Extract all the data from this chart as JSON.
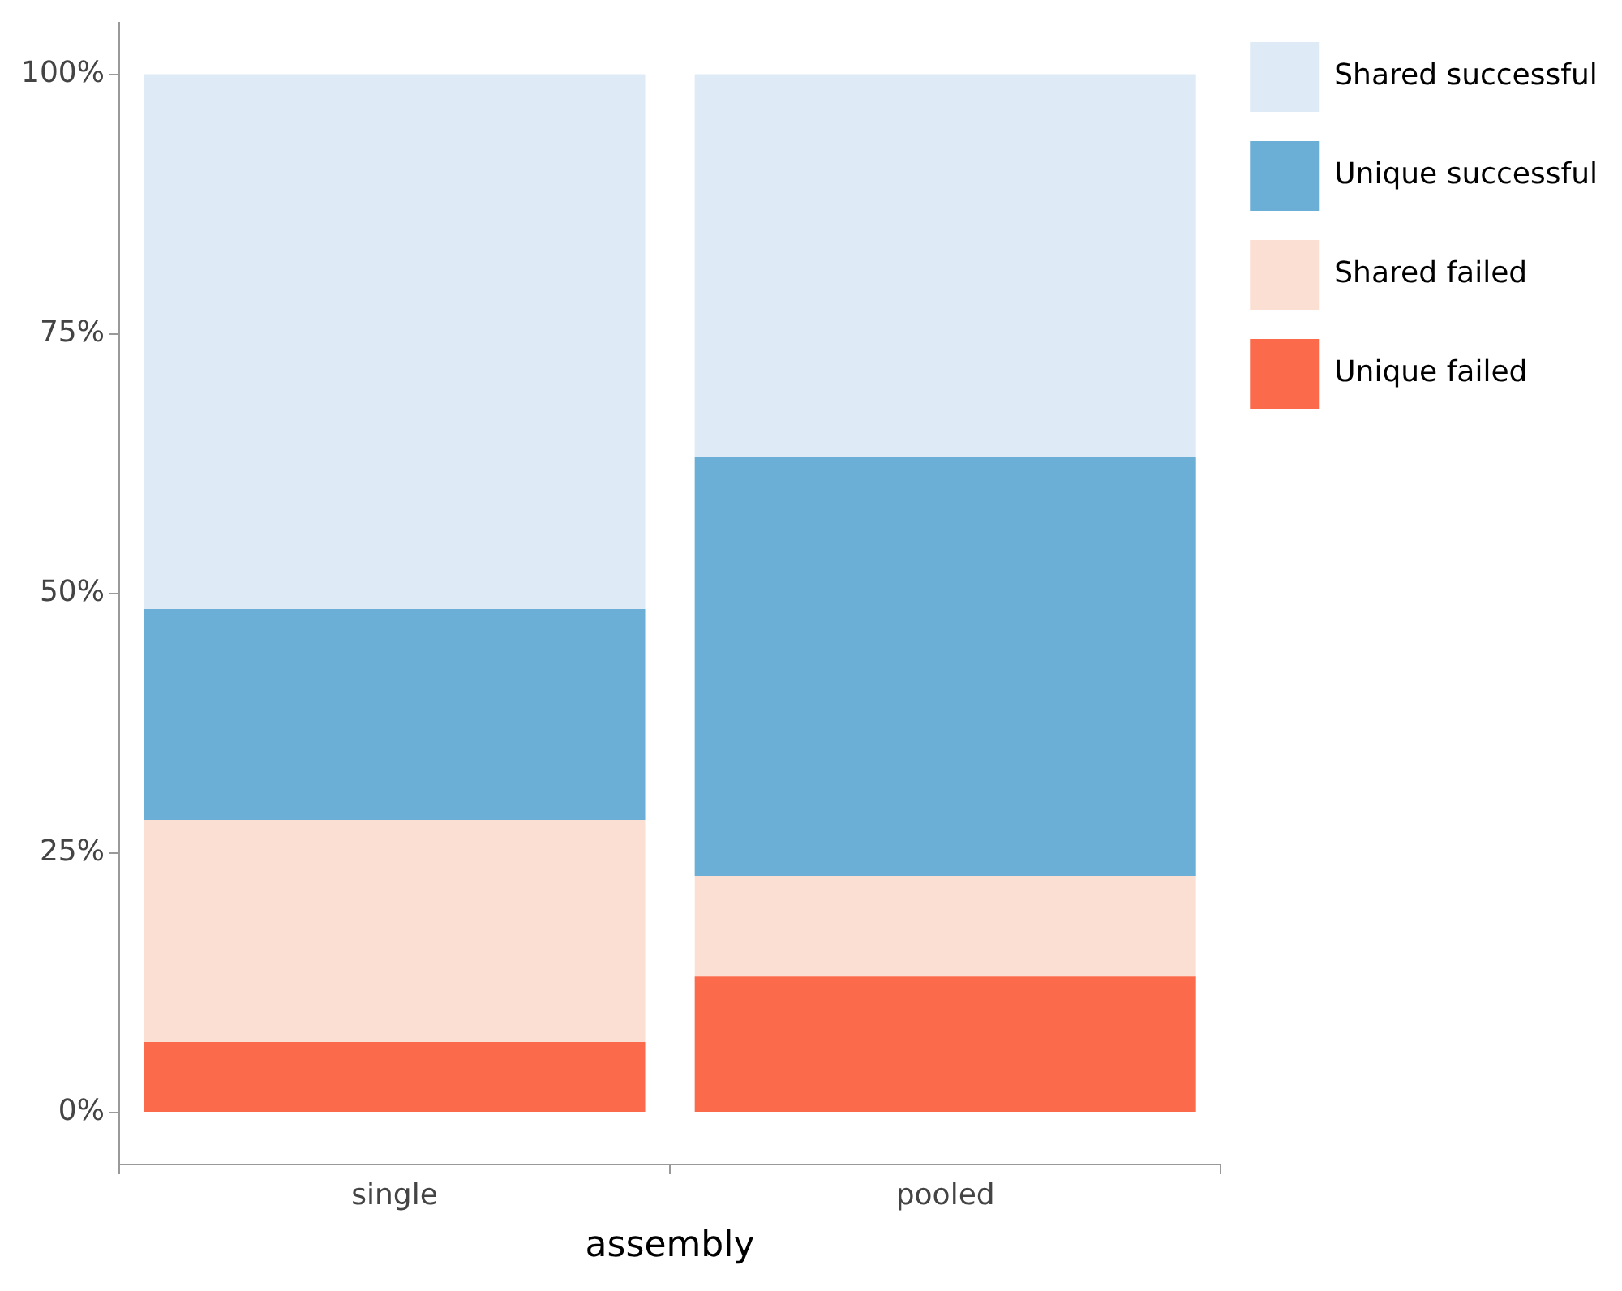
{
  "chart_data": {
    "type": "bar",
    "stacked": true,
    "xlabel": "assembly",
    "categories": [
      "single",
      "pooled"
    ],
    "series": [
      {
        "name": "Unique failed",
        "color": "#fb6a4a",
        "values": [
          6.8,
          13.1
        ]
      },
      {
        "name": "Shared failed",
        "color": "#fcdfd3",
        "values": [
          21.4,
          9.7
        ]
      },
      {
        "name": "Unique successful",
        "color": "#6baed6",
        "values": [
          20.3,
          40.3
        ]
      },
      {
        "name": "Shared successful",
        "color": "#deebf7",
        "values": [
          51.5,
          36.9
        ]
      }
    ],
    "ylim": [
      -5,
      105
    ],
    "yticks": [
      {
        "value": 0,
        "label": "0%"
      },
      {
        "value": 25,
        "label": "25%"
      },
      {
        "value": 50,
        "label": "50%"
      },
      {
        "value": 75,
        "label": "75%"
      },
      {
        "value": 100,
        "label": "100%"
      }
    ],
    "grid": false,
    "legend": "right"
  }
}
